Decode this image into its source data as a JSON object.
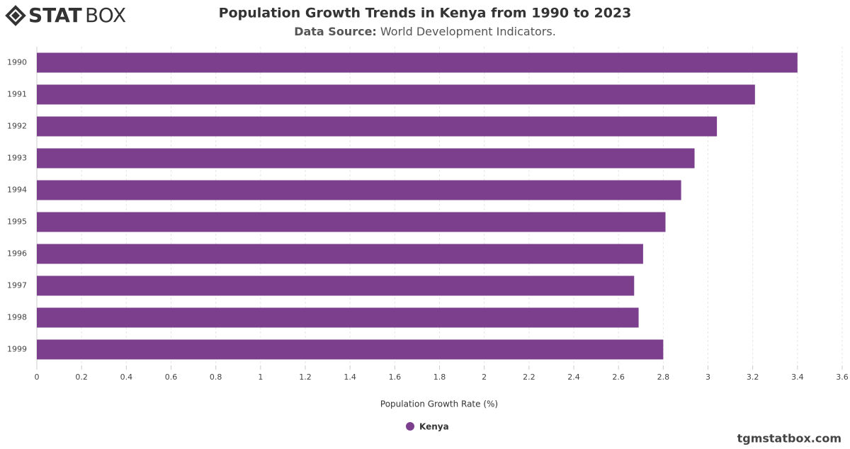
{
  "logo_bold": "STAT",
  "logo_light": "BOX",
  "watermark": "tgmstatbox.com",
  "chart_data": {
    "type": "bar",
    "orientation": "horizontal",
    "title": "Population Growth Trends in Kenya from 1990 to 2023",
    "subtitle_label": "Data Source:",
    "subtitle": "World Development Indicators.",
    "x_label": "Population Growth Rate (%)",
    "categories": [
      "1990",
      "1991",
      "1992",
      "1993",
      "1994",
      "1995",
      "1996",
      "1997",
      "1998",
      "1999"
    ],
    "series": [
      {
        "name": "Kenya",
        "color": "#7b3f8e",
        "values": [
          3.4,
          3.21,
          3.04,
          2.94,
          2.88,
          2.81,
          2.71,
          2.67,
          2.69,
          2.8
        ]
      }
    ],
    "xlim": [
      0,
      3.6
    ],
    "xticks": [
      0,
      0.2,
      0.4,
      0.6,
      0.8,
      1,
      1.2,
      1.4,
      1.6,
      1.8,
      2,
      2.2,
      2.4,
      2.6,
      2.8,
      3,
      3.2,
      3.4,
      3.6
    ],
    "grid": true,
    "legend": "bottom"
  }
}
